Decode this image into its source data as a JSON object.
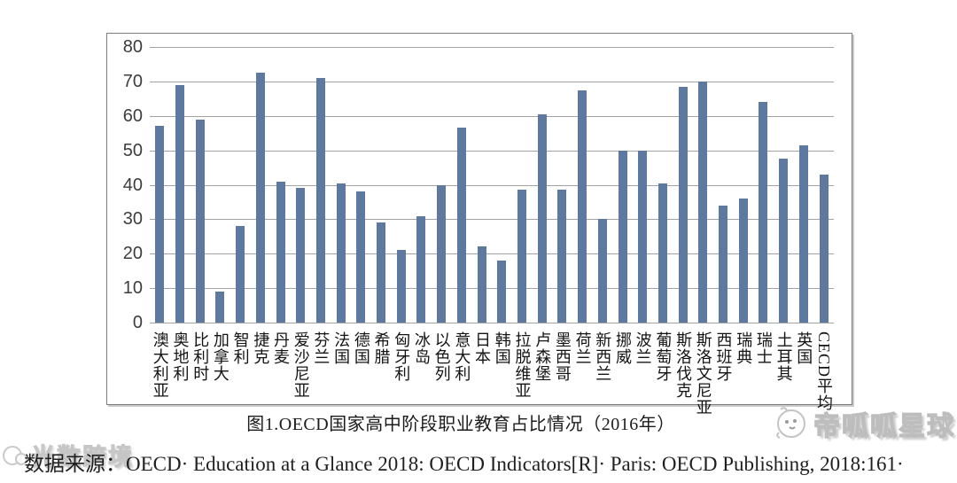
{
  "chart_data": {
    "type": "bar",
    "title": "图1.OECD国家高中阶段职业教育占比情况（2016年）",
    "categories": [
      "澳大利亚",
      "奥地利",
      "比利时",
      "加拿大",
      "智利",
      "捷克",
      "丹麦",
      "爱沙尼亚",
      "芬兰",
      "法国",
      "德国",
      "希腊",
      "匈牙利",
      "冰岛",
      "以色列",
      "意大利",
      "日本",
      "韩国",
      "拉脱维亚",
      "卢森堡",
      "墨西哥",
      "荷兰",
      "新西兰",
      "挪威",
      "波兰",
      "葡萄牙",
      "斯洛伐克",
      "斯洛文尼亚",
      "西班牙",
      "瑞典",
      "瑞士",
      "土耳其",
      "英国",
      "CECD平均"
    ],
    "values": [
      57,
      69,
      59,
      9,
      28,
      72.5,
      41,
      39,
      71,
      40.5,
      38,
      29,
      21,
      31,
      40,
      56.5,
      22,
      18,
      38.5,
      60.5,
      38.5,
      67.5,
      30,
      50,
      50,
      40.5,
      68.5,
      70,
      34,
      36,
      64,
      47.5,
      51.5,
      43
    ],
    "xlabel": "",
    "ylabel": "",
    "ylim": [
      0,
      80
    ],
    "yticks": [
      80,
      70,
      60,
      50,
      40,
      30,
      20,
      10,
      0
    ],
    "bar_color": "#5e79a0",
    "grid": true,
    "legend": "none"
  },
  "source": {
    "text": "数据来源：OECD· Education at a Glance 2018: OECD Indicators[R]· Paris: OECD Publishing, 2018:161·"
  },
  "watermarks": {
    "bottom_left_text": "光数跨境",
    "bottom_right_text": "帝呱呱星球"
  }
}
